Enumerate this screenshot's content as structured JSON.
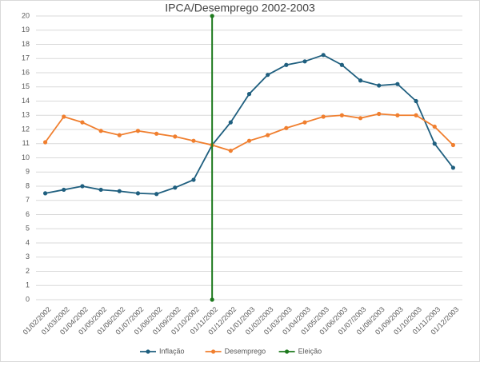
{
  "chart_data": {
    "type": "line",
    "title": "IPCA/Desemprego 2002-2003",
    "categories": [
      "01/02/2002",
      "01/03/2002",
      "01/04/2002",
      "01/05/2002",
      "01/06/2002",
      "01/07/2002",
      "01/08/2002",
      "01/09/2002",
      "01/10/2002",
      "01/11/2002",
      "01/12/2002",
      "01/01/2003",
      "01/02/2003",
      "01/03/2003",
      "01/04/2003",
      "01/05/2003",
      "01/06/2003",
      "01/07/2003",
      "01/08/2003",
      "01/09/2003",
      "01/10/2003",
      "01/11/2003",
      "01/12/2003"
    ],
    "series": [
      {
        "name": "Inflação",
        "color": "#1f5f7f",
        "values": [
          7.5,
          7.75,
          8.0,
          7.75,
          7.65,
          7.5,
          7.45,
          7.9,
          8.45,
          10.9,
          12.5,
          14.5,
          15.85,
          16.55,
          16.8,
          17.25,
          16.55,
          15.45,
          15.1,
          15.2,
          14.0,
          11.0,
          9.3
        ]
      },
      {
        "name": "Desemprego",
        "color": "#f07f2f",
        "values": [
          11.1,
          12.9,
          12.5,
          11.9,
          11.6,
          11.9,
          11.7,
          11.5,
          11.2,
          10.9,
          10.5,
          11.2,
          11.6,
          12.1,
          12.5,
          12.9,
          13.0,
          12.8,
          13.1,
          13.0,
          13.0,
          12.2,
          10.9
        ]
      },
      {
        "name": "Eleição",
        "color": "#1e7a1e",
        "x": [
          "01/11/2002",
          "01/11/2002"
        ],
        "values": [
          0,
          20
        ]
      }
    ],
    "ylim": [
      0,
      20
    ],
    "yticks": [
      0,
      1,
      2,
      3,
      4,
      5,
      6,
      7,
      8,
      9,
      10,
      11,
      12,
      13,
      14,
      15,
      16,
      17,
      18,
      19,
      20
    ],
    "grid": true,
    "legend": "bottom"
  }
}
